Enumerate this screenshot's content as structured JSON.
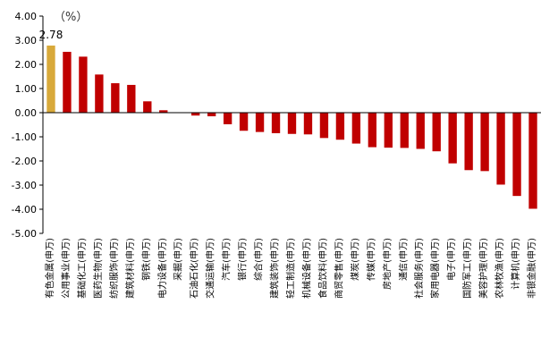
{
  "chart_data": {
    "type": "bar",
    "unit": "（%）",
    "ylim": [
      -5.0,
      4.0
    ],
    "yticks": [
      "4.00",
      "3.00",
      "2.00",
      "1.00",
      "0.00",
      "-1.00",
      "-2.00",
      "-3.00",
      "-4.00",
      "-5.00"
    ],
    "grid": false,
    "legend": "none",
    "highlight_color": "#D8A93A",
    "bar_color": "#C00000",
    "highlight_index": 0,
    "data_labels": [
      {
        "index": 0,
        "text": "2.78"
      }
    ],
    "categories": [
      "有色金属(申万)",
      "公用事业(申万)",
      "基础化工(申万)",
      "医药生物(申万)",
      "纺织服饰(申万)",
      "建筑材料(申万)",
      "钢铁(申万)",
      "电力设备(申万)",
      "采掘(申万)",
      "石油石化(申万)",
      "交通运输(申万)",
      "汽车(申万)",
      "银行(申万)",
      "综合(申万)",
      "建筑装饰(申万)",
      "轻工制造(申万)",
      "机械设备(申万)",
      "食品饮料(申万)",
      "商贸零售(申万)",
      "煤炭(申万)",
      "传媒(申万)",
      "房地产(申万)",
      "通信(申万)",
      "社会服务(申万)",
      "家用电器(申万)",
      "电子(申万)",
      "国防军工(申万)",
      "美容护理(申万)",
      "农林牧渔(申万)",
      "计算机(申万)",
      "非银金融(申万)"
    ],
    "values": [
      2.78,
      2.52,
      2.32,
      1.58,
      1.22,
      1.15,
      0.47,
      0.1,
      0.0,
      -0.12,
      -0.15,
      -0.48,
      -0.75,
      -0.8,
      -0.85,
      -0.88,
      -0.9,
      -1.05,
      -1.12,
      -1.28,
      -1.43,
      -1.45,
      -1.46,
      -1.5,
      -1.6,
      -2.1,
      -2.38,
      -2.42,
      -2.98,
      -3.45,
      -3.98
    ]
  }
}
